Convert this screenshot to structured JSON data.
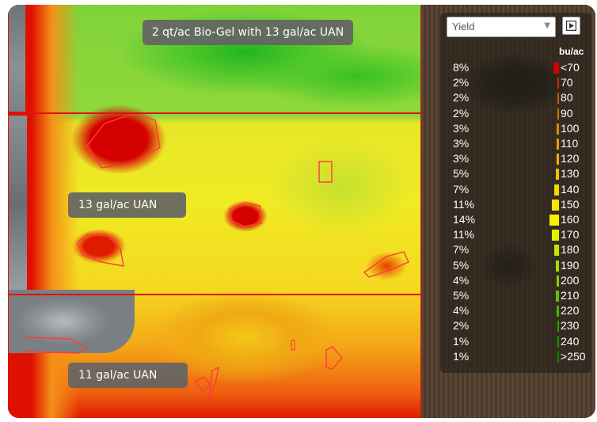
{
  "labels": {
    "top": "2 qt/ac Bio-Gel with 13 gal/ac UAN",
    "middle": "13 gal/ac UAN",
    "bottom": "11 gal/ac UAN"
  },
  "legend": {
    "layer_select": "Yield",
    "unit": "bu/ac",
    "rows": [
      {
        "pct": "8%",
        "value": "<70",
        "color": "#d40000",
        "share": 8
      },
      {
        "pct": "2%",
        "value": "70",
        "color": "#c83200",
        "share": 2
      },
      {
        "pct": "2%",
        "value": "80",
        "color": "#c85a00",
        "share": 2
      },
      {
        "pct": "2%",
        "value": "90",
        "color": "#d07000",
        "share": 2
      },
      {
        "pct": "3%",
        "value": "100",
        "color": "#e08a00",
        "share": 3
      },
      {
        "pct": "3%",
        "value": "110",
        "color": "#e89e00",
        "share": 3
      },
      {
        "pct": "3%",
        "value": "120",
        "color": "#f0b000",
        "share": 3
      },
      {
        "pct": "5%",
        "value": "130",
        "color": "#f4c000",
        "share": 5
      },
      {
        "pct": "7%",
        "value": "140",
        "color": "#f8d400",
        "share": 7
      },
      {
        "pct": "11%",
        "value": "150",
        "color": "#fae400",
        "share": 11
      },
      {
        "pct": "14%",
        "value": "160",
        "color": "#f8f000",
        "share": 14
      },
      {
        "pct": "11%",
        "value": "170",
        "color": "#e4ee00",
        "share": 11
      },
      {
        "pct": "7%",
        "value": "180",
        "color": "#c8e400",
        "share": 7
      },
      {
        "pct": "5%",
        "value": "190",
        "color": "#a8dc00",
        "share": 5
      },
      {
        "pct": "4%",
        "value": "200",
        "color": "#84d000",
        "share": 4
      },
      {
        "pct": "5%",
        "value": "210",
        "color": "#5cc400",
        "share": 5
      },
      {
        "pct": "4%",
        "value": "220",
        "color": "#3cb800",
        "share": 4
      },
      {
        "pct": "2%",
        "value": "230",
        "color": "#22aa00",
        "share": 2
      },
      {
        "pct": "1%",
        "value": "240",
        "color": "#149a00",
        "share": 1
      },
      {
        "pct": "1%",
        "value": ">250",
        "color": "#0a8a00",
        "share": 1
      }
    ]
  },
  "icons": {
    "play": "play-icon",
    "dropdown": "chevron-down-icon"
  }
}
